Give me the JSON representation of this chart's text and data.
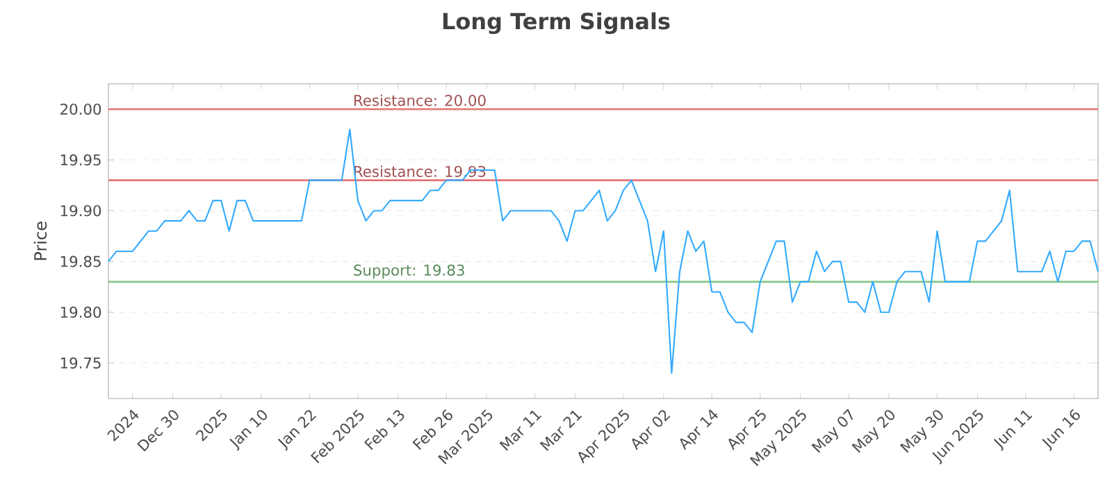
{
  "chart_data": {
    "type": "line",
    "title": "Long Term Signals",
    "ylabel": "Price",
    "categories": [
      null,
      null,
      null,
      "2024",
      null,
      null,
      null,
      null,
      "Dec 30",
      null,
      null,
      null,
      null,
      null,
      "2025",
      null,
      null,
      null,
      null,
      "Jan 10",
      null,
      null,
      null,
      null,
      null,
      "Jan 22",
      null,
      null,
      null,
      null,
      null,
      "Feb 2025",
      null,
      null,
      null,
      null,
      "Feb 13",
      null,
      null,
      null,
      null,
      null,
      "Feb 26",
      null,
      null,
      null,
      null,
      "Mar 2025",
      null,
      null,
      null,
      null,
      null,
      "Mar 11",
      null,
      null,
      null,
      null,
      "Mar 21",
      null,
      null,
      null,
      null,
      null,
      "Apr 2025",
      null,
      null,
      null,
      null,
      "Apr 02",
      null,
      null,
      null,
      null,
      null,
      "Apr 14",
      null,
      null,
      null,
      null,
      null,
      "Apr 25",
      null,
      null,
      null,
      null,
      "May 2025",
      null,
      null,
      null,
      null,
      null,
      "May 07",
      null,
      null,
      null,
      null,
      "May 20",
      null,
      null,
      null,
      null,
      null,
      "May 30",
      null,
      null,
      null,
      null,
      "Jun 2025",
      null,
      null,
      null,
      null,
      null,
      "Jun 11",
      null,
      null,
      null,
      null,
      null,
      "Jun 16",
      null,
      null,
      null
    ],
    "series": [
      {
        "color": "#33aaff",
        "values": [
          19.85,
          19.86,
          19.86,
          19.86,
          19.87,
          19.88,
          19.88,
          19.89,
          19.89,
          19.89,
          19.9,
          19.89,
          19.89,
          19.91,
          19.91,
          19.88,
          19.91,
          19.91,
          19.89,
          19.89,
          19.89,
          19.89,
          19.89,
          19.89,
          19.89,
          19.93,
          19.93,
          19.93,
          19.93,
          19.93,
          19.98,
          19.91,
          19.89,
          19.9,
          19.9,
          19.91,
          19.91,
          19.91,
          19.91,
          19.91,
          19.92,
          19.92,
          19.93,
          19.93,
          19.93,
          19.94,
          19.94,
          19.94,
          19.94,
          19.89,
          19.9,
          19.9,
          19.9,
          19.9,
          19.9,
          19.9,
          19.89,
          19.87,
          19.9,
          19.9,
          19.91,
          19.92,
          19.89,
          19.9,
          19.92,
          19.93,
          19.91,
          19.89,
          19.84,
          19.88,
          19.74,
          19.84,
          19.88,
          19.86,
          19.87,
          19.82,
          19.82,
          19.8,
          19.79,
          19.79,
          19.78,
          19.83,
          19.85,
          19.87,
          19.87,
          19.81,
          19.83,
          19.83,
          19.86,
          19.84,
          19.85,
          19.85,
          19.81,
          19.81,
          19.8,
          19.83,
          19.8,
          19.8,
          19.83,
          19.84,
          19.84,
          19.84,
          19.81,
          19.88,
          19.83,
          19.83,
          19.83,
          19.83,
          19.87,
          19.87,
          19.88,
          19.89,
          19.92,
          19.84,
          19.84,
          19.84,
          19.84,
          19.86,
          19.83,
          19.86,
          19.86,
          19.87,
          19.87,
          19.84
        ]
      }
    ],
    "ylim": [
      19.715,
      20.025
    ],
    "yticks": [
      19.75,
      {
        "value": 19.8,
        "label": "19.80"
      },
      19.85,
      {
        "value": 19.9,
        "label": "19.90"
      },
      19.95,
      {
        "value": 20.0,
        "label": "20.00"
      }
    ],
    "grid": "y",
    "marker": "none",
    "line_style": "solid",
    "ref_lines": [
      {
        "axis": "y",
        "value": 20.0,
        "label": "Resistance: 20.00",
        "color": "#e57373"
      },
      {
        "axis": "y",
        "value": 19.93,
        "label": "Resistance: 19.93",
        "color": "#e57373"
      },
      {
        "axis": "y",
        "value": 19.83,
        "label": "Support: 19.83",
        "color": "#81c784"
      }
    ]
  }
}
